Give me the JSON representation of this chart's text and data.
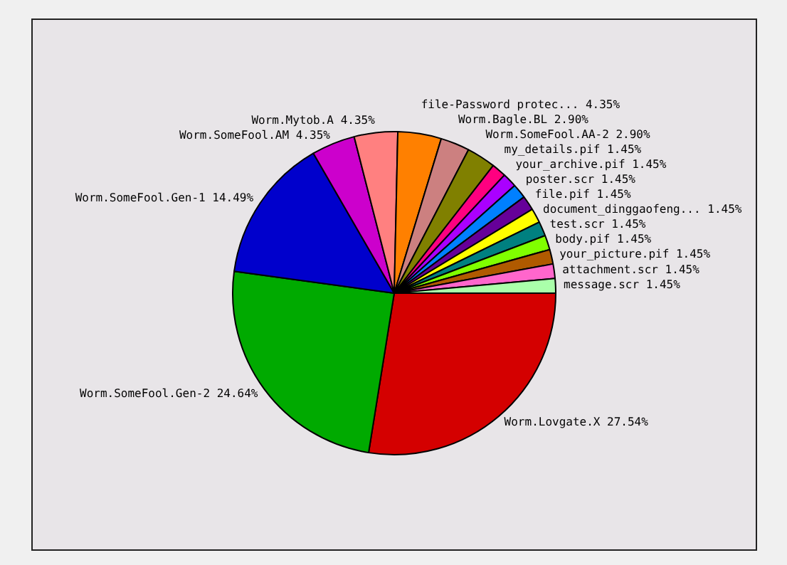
{
  "chart_data": {
    "type": "pie",
    "categories": [
      "Worm.Lovgate.X",
      "Worm.SomeFool.Gen-2",
      "Worm.SomeFool.Gen-1",
      "Worm.SomeFool.AM",
      "Worm.Mytob.A",
      "file-Password protec...",
      "Worm.Bagle.BL",
      "Worm.SomeFool.AA-2",
      "my_details.pif",
      "your_archive.pif",
      "poster.scr",
      "file.pif",
      "document_dinggaofeng...",
      "test.scr",
      "body.pif",
      "your_picture.pif",
      "attachment.scr",
      "message.scr"
    ],
    "values": [
      27.54,
      24.64,
      14.49,
      4.35,
      4.35,
      4.35,
      2.9,
      2.9,
      1.45,
      1.45,
      1.45,
      1.45,
      1.45,
      1.45,
      1.45,
      1.45,
      1.45,
      1.45
    ],
    "value_labels": [
      "27.54%",
      "24.64%",
      "14.49%",
      "4.35%",
      "4.35%",
      "4.35%",
      "2.90%",
      "2.90%",
      "1.45%",
      "1.45%",
      "1.45%",
      "1.45%",
      "1.45%",
      "1.45%",
      "1.45%",
      "1.45%",
      "1.45%",
      "1.45%"
    ],
    "colors": [
      "#d40000",
      "#00aa00",
      "#0000cc",
      "#cc00cc",
      "#ff8080",
      "#ff8000",
      "#cc8080",
      "#808000",
      "#ff0080",
      "#aa00ff",
      "#0080ff",
      "#660099",
      "#ffff00",
      "#008080",
      "#80ff00",
      "#b05a00",
      "#ff66cc",
      "#aaffaa"
    ],
    "legend": false
  }
}
